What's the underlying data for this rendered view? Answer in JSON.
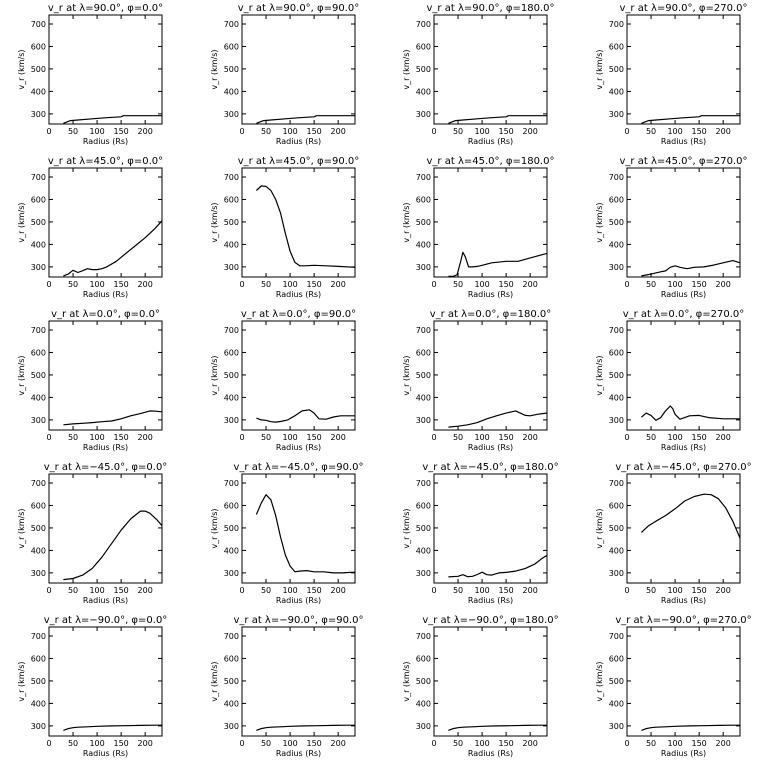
{
  "chart_data": [
    {
      "type": "line",
      "title": "v_r at λ=90.0°, φ=0.0°",
      "xlabel": "Radius (Rs)",
      "ylabel": "v_r (km/s)",
      "xlim": [
        0,
        235
      ],
      "ylim": [
        255,
        740
      ],
      "xticks": [
        0,
        50,
        100,
        150,
        200
      ],
      "yticks": [
        300,
        400,
        500,
        600,
        700
      ],
      "grid": false,
      "series": [
        {
          "x": [
            30,
            45,
            60,
            90,
            120,
            150,
            155,
            235
          ],
          "values": [
            258,
            270,
            273,
            278,
            283,
            287,
            292,
            292
          ]
        }
      ]
    },
    {
      "type": "line",
      "title": "v_r at λ=90.0°, φ=90.0°",
      "xlabel": "Radius (Rs)",
      "ylabel": "v_r (km/s)",
      "xlim": [
        0,
        235
      ],
      "ylim": [
        255,
        740
      ],
      "xticks": [
        0,
        50,
        100,
        150,
        200
      ],
      "yticks": [
        300,
        400,
        500,
        600,
        700
      ],
      "grid": false,
      "series": [
        {
          "x": [
            30,
            45,
            60,
            90,
            120,
            150,
            155,
            235
          ],
          "values": [
            258,
            270,
            273,
            278,
            283,
            287,
            292,
            292
          ]
        }
      ]
    },
    {
      "type": "line",
      "title": "v_r at λ=90.0°, φ=180.0°",
      "xlabel": "Radius (Rs)",
      "ylabel": "v_r (km/s)",
      "xlim": [
        0,
        235
      ],
      "ylim": [
        255,
        740
      ],
      "xticks": [
        0,
        50,
        100,
        150,
        200
      ],
      "yticks": [
        300,
        400,
        500,
        600,
        700
      ],
      "grid": false,
      "series": [
        {
          "x": [
            30,
            45,
            60,
            90,
            120,
            150,
            155,
            235
          ],
          "values": [
            258,
            270,
            273,
            278,
            283,
            287,
            292,
            292
          ]
        }
      ]
    },
    {
      "type": "line",
      "title": "v_r at λ=90.0°, φ=270.0°",
      "xlabel": "Radius (Rs)",
      "ylabel": "v_r (km/s)",
      "xlim": [
        0,
        235
      ],
      "ylim": [
        255,
        740
      ],
      "xticks": [
        0,
        50,
        100,
        150,
        200
      ],
      "yticks": [
        300,
        400,
        500,
        600,
        700
      ],
      "grid": false,
      "series": [
        {
          "x": [
            30,
            45,
            60,
            90,
            120,
            150,
            155,
            235
          ],
          "values": [
            258,
            270,
            273,
            278,
            283,
            287,
            292,
            292
          ]
        }
      ]
    },
    {
      "type": "line",
      "title": "v_r at λ=45.0°, φ=0.0°",
      "xlabel": "Radius (Rs)",
      "ylabel": "v_r (km/s)",
      "xlim": [
        0,
        235
      ],
      "ylim": [
        255,
        740
      ],
      "xticks": [
        0,
        50,
        100,
        150,
        200
      ],
      "yticks": [
        300,
        400,
        500,
        600,
        700
      ],
      "grid": false,
      "series": [
        {
          "x": [
            30,
            40,
            50,
            60,
            70,
            80,
            90,
            100,
            110,
            120,
            140,
            160,
            180,
            200,
            220,
            235
          ],
          "values": [
            260,
            268,
            285,
            275,
            283,
            292,
            288,
            288,
            292,
            300,
            325,
            360,
            395,
            430,
            470,
            505
          ]
        }
      ]
    },
    {
      "type": "line",
      "title": "v_r at λ=45.0°, φ=90.0°",
      "xlabel": "Radius (Rs)",
      "ylabel": "v_r (km/s)",
      "xlim": [
        0,
        235
      ],
      "ylim": [
        255,
        740
      ],
      "xticks": [
        0,
        50,
        100,
        150,
        200
      ],
      "yticks": [
        300,
        400,
        500,
        600,
        700
      ],
      "grid": false,
      "series": [
        {
          "x": [
            30,
            40,
            50,
            60,
            70,
            80,
            90,
            100,
            110,
            120,
            130,
            150,
            175,
            200,
            235
          ],
          "values": [
            640,
            660,
            658,
            640,
            600,
            540,
            450,
            370,
            320,
            305,
            305,
            307,
            305,
            302,
            298
          ]
        }
      ]
    },
    {
      "type": "line",
      "title": "v_r at λ=45.0°, φ=180.0°",
      "xlabel": "Radius (Rs)",
      "ylabel": "v_r (km/s)",
      "xlim": [
        0,
        235
      ],
      "ylim": [
        255,
        740
      ],
      "xticks": [
        0,
        50,
        100,
        150,
        200
      ],
      "yticks": [
        300,
        400,
        500,
        600,
        700
      ],
      "grid": false,
      "series": [
        {
          "x": [
            30,
            40,
            48,
            55,
            60,
            65,
            72,
            80,
            90,
            100,
            120,
            150,
            175,
            200,
            235
          ],
          "values": [
            258,
            258,
            265,
            320,
            365,
            345,
            300,
            300,
            302,
            307,
            318,
            325,
            325,
            340,
            360
          ]
        }
      ]
    },
    {
      "type": "line",
      "title": "v_r at λ=45.0°, φ=270.0°",
      "xlabel": "Radius (Rs)",
      "ylabel": "v_r (km/s)",
      "xlim": [
        0,
        235
      ],
      "ylim": [
        255,
        740
      ],
      "xticks": [
        0,
        50,
        100,
        150,
        200
      ],
      "yticks": [
        300,
        400,
        500,
        600,
        700
      ],
      "grid": false,
      "series": [
        {
          "x": [
            30,
            50,
            70,
            80,
            90,
            100,
            110,
            125,
            140,
            160,
            180,
            200,
            220,
            235
          ],
          "values": [
            260,
            268,
            278,
            282,
            298,
            305,
            298,
            292,
            298,
            300,
            308,
            318,
            328,
            318
          ]
        }
      ]
    },
    {
      "type": "line",
      "title": "v_r at λ=0.0°, φ=0.0°",
      "xlabel": "Radius (Rs)",
      "ylabel": "v_r (km/s)",
      "xlim": [
        0,
        235
      ],
      "ylim": [
        255,
        740
      ],
      "xticks": [
        0,
        50,
        100,
        150,
        200
      ],
      "yticks": [
        300,
        400,
        500,
        600,
        700
      ],
      "grid": false,
      "series": [
        {
          "x": [
            30,
            50,
            70,
            90,
            110,
            130,
            150,
            170,
            190,
            210,
            225,
            235
          ],
          "values": [
            278,
            282,
            285,
            288,
            292,
            295,
            305,
            318,
            328,
            340,
            338,
            336
          ]
        }
      ]
    },
    {
      "type": "line",
      "title": "v_r at λ=0.0°, φ=90.0°",
      "xlabel": "Radius (Rs)",
      "ylabel": "v_r (km/s)",
      "xlim": [
        0,
        235
      ],
      "ylim": [
        255,
        740
      ],
      "xticks": [
        0,
        50,
        100,
        150,
        200
      ],
      "yticks": [
        300,
        400,
        500,
        600,
        700
      ],
      "grid": false,
      "series": [
        {
          "x": [
            30,
            40,
            50,
            60,
            70,
            80,
            95,
            110,
            125,
            140,
            150,
            160,
            175,
            190,
            205,
            220,
            235
          ],
          "values": [
            308,
            300,
            298,
            292,
            290,
            293,
            300,
            318,
            340,
            345,
            330,
            305,
            303,
            313,
            318,
            318,
            318
          ]
        }
      ]
    },
    {
      "type": "line",
      "title": "v_r at λ=0.0°, φ=180.0°",
      "xlabel": "Radius (Rs)",
      "ylabel": "v_r (km/s)",
      "xlim": [
        0,
        235
      ],
      "ylim": [
        255,
        740
      ],
      "xticks": [
        0,
        50,
        100,
        150,
        200
      ],
      "yticks": [
        300,
        400,
        500,
        600,
        700
      ],
      "grid": false,
      "series": [
        {
          "x": [
            30,
            50,
            70,
            90,
            110,
            130,
            150,
            170,
            190,
            200,
            215,
            225,
            235
          ],
          "values": [
            268,
            272,
            278,
            288,
            305,
            318,
            330,
            340,
            320,
            318,
            325,
            328,
            330
          ]
        }
      ]
    },
    {
      "type": "line",
      "title": "v_r at λ=0.0°, φ=270.0°",
      "xlabel": "Radius (Rs)",
      "ylabel": "v_r (km/s)",
      "xlim": [
        0,
        235
      ],
      "ylim": [
        255,
        740
      ],
      "xticks": [
        0,
        50,
        100,
        150,
        200
      ],
      "yticks": [
        300,
        400,
        500,
        600,
        700
      ],
      "grid": false,
      "series": [
        {
          "x": [
            30,
            40,
            50,
            60,
            70,
            80,
            90,
            95,
            100,
            110,
            120,
            130,
            150,
            170,
            200,
            235
          ],
          "values": [
            312,
            330,
            320,
            298,
            310,
            340,
            362,
            350,
            325,
            303,
            310,
            318,
            320,
            310,
            305,
            305
          ]
        }
      ]
    },
    {
      "type": "line",
      "title": "v_r at λ=−45.0°, φ=0.0°",
      "xlabel": "Radius (Rs)",
      "ylabel": "v_r (km/s)",
      "xlim": [
        0,
        235
      ],
      "ylim": [
        255,
        740
      ],
      "xticks": [
        0,
        50,
        100,
        150,
        200
      ],
      "yticks": [
        300,
        400,
        500,
        600,
        700
      ],
      "grid": false,
      "series": [
        {
          "x": [
            30,
            50,
            70,
            90,
            110,
            130,
            150,
            170,
            190,
            200,
            210,
            225,
            235
          ],
          "values": [
            270,
            275,
            290,
            320,
            370,
            430,
            490,
            540,
            575,
            575,
            565,
            535,
            510
          ]
        }
      ]
    },
    {
      "type": "line",
      "title": "v_r at λ=−45.0°, φ=90.0°",
      "xlabel": "Radius (Rs)",
      "ylabel": "v_r (km/s)",
      "xlim": [
        0,
        235
      ],
      "ylim": [
        255,
        740
      ],
      "xticks": [
        0,
        50,
        100,
        150,
        200
      ],
      "yticks": [
        300,
        400,
        500,
        600,
        700
      ],
      "grid": false,
      "series": [
        {
          "x": [
            30,
            40,
            50,
            60,
            70,
            80,
            90,
            100,
            110,
            120,
            135,
            150,
            170,
            190,
            210,
            225,
            235
          ],
          "values": [
            560,
            610,
            648,
            625,
            555,
            460,
            380,
            330,
            305,
            308,
            310,
            305,
            305,
            300,
            300,
            302,
            303
          ]
        }
      ]
    },
    {
      "type": "line",
      "title": "v_r at λ=−45.0°, φ=180.0°",
      "xlabel": "Radius (Rs)",
      "ylabel": "v_r (km/s)",
      "xlim": [
        0,
        235
      ],
      "ylim": [
        255,
        740
      ],
      "xticks": [
        0,
        50,
        100,
        150,
        200
      ],
      "yticks": [
        300,
        400,
        500,
        600,
        700
      ],
      "grid": false,
      "series": [
        {
          "x": [
            30,
            50,
            60,
            70,
            80,
            90,
            100,
            110,
            120,
            135,
            150,
            170,
            190,
            210,
            225,
            235
          ],
          "values": [
            282,
            285,
            292,
            283,
            285,
            293,
            303,
            292,
            290,
            300,
            302,
            308,
            320,
            340,
            365,
            378
          ]
        }
      ]
    },
    {
      "type": "line",
      "title": "v_r at λ=−45.0°, φ=270.0°",
      "xlabel": "Radius (Rs)",
      "ylabel": "v_r (km/s)",
      "xlim": [
        0,
        235
      ],
      "ylim": [
        255,
        740
      ],
      "xticks": [
        0,
        50,
        100,
        150,
        200
      ],
      "yticks": [
        300,
        400,
        500,
        600,
        700
      ],
      "grid": false,
      "series": [
        {
          "x": [
            30,
            45,
            60,
            80,
            100,
            120,
            140,
            160,
            175,
            190,
            205,
            220,
            235
          ],
          "values": [
            480,
            510,
            530,
            555,
            585,
            620,
            640,
            650,
            648,
            630,
            590,
            530,
            455
          ]
        }
      ]
    },
    {
      "type": "line",
      "title": "v_r at λ=−90.0°, φ=0.0°",
      "xlabel": "Radius (Rs)",
      "ylabel": "v_r (km/s)",
      "xlim": [
        0,
        235
      ],
      "ylim": [
        255,
        740
      ],
      "xticks": [
        0,
        50,
        100,
        150,
        200
      ],
      "yticks": [
        300,
        400,
        500,
        600,
        700
      ],
      "grid": false,
      "series": [
        {
          "x": [
            30,
            40,
            50,
            60,
            80,
            100,
            130,
            160,
            190,
            220,
            235
          ],
          "values": [
            280,
            288,
            292,
            294,
            296,
            298,
            300,
            301,
            302,
            303,
            303
          ]
        }
      ]
    },
    {
      "type": "line",
      "title": "v_r at λ=−90.0°, φ=90.0°",
      "xlabel": "Radius (Rs)",
      "ylabel": "v_r (km/s)",
      "xlim": [
        0,
        235
      ],
      "ylim": [
        255,
        740
      ],
      "xticks": [
        0,
        50,
        100,
        150,
        200
      ],
      "yticks": [
        300,
        400,
        500,
        600,
        700
      ],
      "grid": false,
      "series": [
        {
          "x": [
            30,
            40,
            50,
            60,
            80,
            100,
            130,
            160,
            190,
            220,
            235
          ],
          "values": [
            280,
            288,
            292,
            294,
            296,
            298,
            300,
            301,
            302,
            303,
            303
          ]
        }
      ]
    },
    {
      "type": "line",
      "title": "v_r at λ=−90.0°, φ=180.0°",
      "xlabel": "Radius (Rs)",
      "ylabel": "v_r (km/s)",
      "xlim": [
        0,
        235
      ],
      "ylim": [
        255,
        740
      ],
      "xticks": [
        0,
        50,
        100,
        150,
        200
      ],
      "yticks": [
        300,
        400,
        500,
        600,
        700
      ],
      "grid": false,
      "series": [
        {
          "x": [
            30,
            40,
            50,
            60,
            80,
            100,
            130,
            160,
            190,
            220,
            235
          ],
          "values": [
            280,
            288,
            292,
            294,
            296,
            298,
            300,
            301,
            302,
            303,
            303
          ]
        }
      ]
    },
    {
      "type": "line",
      "title": "v_r at λ=−90.0°, φ=270.0°",
      "xlabel": "Radius (Rs)",
      "ylabel": "v_r (km/s)",
      "xlim": [
        0,
        235
      ],
      "ylim": [
        255,
        740
      ],
      "xticks": [
        0,
        50,
        100,
        150,
        200
      ],
      "yticks": [
        300,
        400,
        500,
        600,
        700
      ],
      "grid": false,
      "series": [
        {
          "x": [
            30,
            40,
            50,
            60,
            80,
            100,
            130,
            160,
            190,
            220,
            235
          ],
          "values": [
            280,
            288,
            292,
            294,
            296,
            298,
            300,
            301,
            302,
            303,
            303
          ]
        }
      ]
    }
  ]
}
